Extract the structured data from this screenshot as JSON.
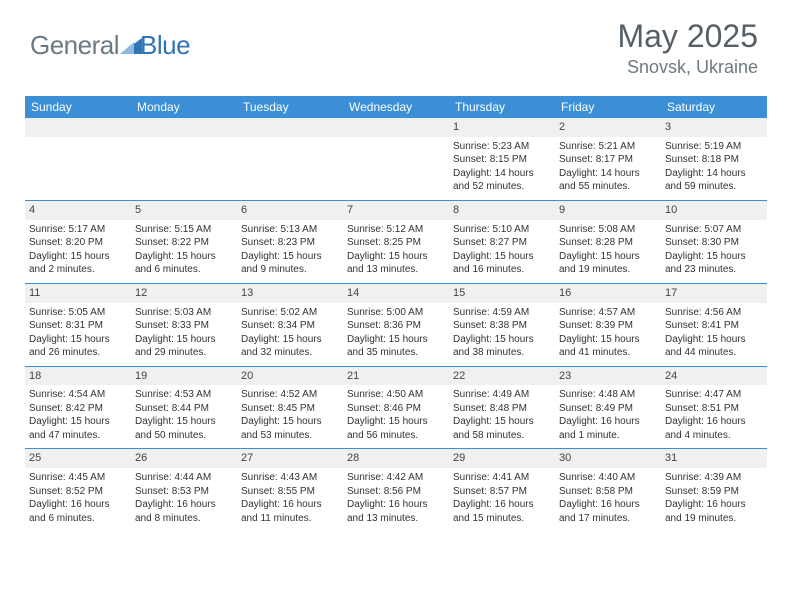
{
  "brand": {
    "word1": "General",
    "word2": "Blue"
  },
  "title": "May 2025",
  "location": "Snovsk, Ukraine",
  "colors": {
    "header_bg": "#3a8fd6",
    "daynum_bg": "#eef0f1",
    "text": "#333333",
    "brand_gray": "#6b7a84",
    "brand_blue": "#2f74b5"
  },
  "headers": [
    "Sunday",
    "Monday",
    "Tuesday",
    "Wednesday",
    "Thursday",
    "Friday",
    "Saturday"
  ],
  "weeks": [
    [
      null,
      null,
      null,
      null,
      {
        "n": "1",
        "sr": "Sunrise: 5:23 AM",
        "ss": "Sunset: 8:15 PM",
        "d1": "Daylight: 14 hours",
        "d2": "and 52 minutes."
      },
      {
        "n": "2",
        "sr": "Sunrise: 5:21 AM",
        "ss": "Sunset: 8:17 PM",
        "d1": "Daylight: 14 hours",
        "d2": "and 55 minutes."
      },
      {
        "n": "3",
        "sr": "Sunrise: 5:19 AM",
        "ss": "Sunset: 8:18 PM",
        "d1": "Daylight: 14 hours",
        "d2": "and 59 minutes."
      }
    ],
    [
      {
        "n": "4",
        "sr": "Sunrise: 5:17 AM",
        "ss": "Sunset: 8:20 PM",
        "d1": "Daylight: 15 hours",
        "d2": "and 2 minutes."
      },
      {
        "n": "5",
        "sr": "Sunrise: 5:15 AM",
        "ss": "Sunset: 8:22 PM",
        "d1": "Daylight: 15 hours",
        "d2": "and 6 minutes."
      },
      {
        "n": "6",
        "sr": "Sunrise: 5:13 AM",
        "ss": "Sunset: 8:23 PM",
        "d1": "Daylight: 15 hours",
        "d2": "and 9 minutes."
      },
      {
        "n": "7",
        "sr": "Sunrise: 5:12 AM",
        "ss": "Sunset: 8:25 PM",
        "d1": "Daylight: 15 hours",
        "d2": "and 13 minutes."
      },
      {
        "n": "8",
        "sr": "Sunrise: 5:10 AM",
        "ss": "Sunset: 8:27 PM",
        "d1": "Daylight: 15 hours",
        "d2": "and 16 minutes."
      },
      {
        "n": "9",
        "sr": "Sunrise: 5:08 AM",
        "ss": "Sunset: 8:28 PM",
        "d1": "Daylight: 15 hours",
        "d2": "and 19 minutes."
      },
      {
        "n": "10",
        "sr": "Sunrise: 5:07 AM",
        "ss": "Sunset: 8:30 PM",
        "d1": "Daylight: 15 hours",
        "d2": "and 23 minutes."
      }
    ],
    [
      {
        "n": "11",
        "sr": "Sunrise: 5:05 AM",
        "ss": "Sunset: 8:31 PM",
        "d1": "Daylight: 15 hours",
        "d2": "and 26 minutes."
      },
      {
        "n": "12",
        "sr": "Sunrise: 5:03 AM",
        "ss": "Sunset: 8:33 PM",
        "d1": "Daylight: 15 hours",
        "d2": "and 29 minutes."
      },
      {
        "n": "13",
        "sr": "Sunrise: 5:02 AM",
        "ss": "Sunset: 8:34 PM",
        "d1": "Daylight: 15 hours",
        "d2": "and 32 minutes."
      },
      {
        "n": "14",
        "sr": "Sunrise: 5:00 AM",
        "ss": "Sunset: 8:36 PM",
        "d1": "Daylight: 15 hours",
        "d2": "and 35 minutes."
      },
      {
        "n": "15",
        "sr": "Sunrise: 4:59 AM",
        "ss": "Sunset: 8:38 PM",
        "d1": "Daylight: 15 hours",
        "d2": "and 38 minutes."
      },
      {
        "n": "16",
        "sr": "Sunrise: 4:57 AM",
        "ss": "Sunset: 8:39 PM",
        "d1": "Daylight: 15 hours",
        "d2": "and 41 minutes."
      },
      {
        "n": "17",
        "sr": "Sunrise: 4:56 AM",
        "ss": "Sunset: 8:41 PM",
        "d1": "Daylight: 15 hours",
        "d2": "and 44 minutes."
      }
    ],
    [
      {
        "n": "18",
        "sr": "Sunrise: 4:54 AM",
        "ss": "Sunset: 8:42 PM",
        "d1": "Daylight: 15 hours",
        "d2": "and 47 minutes."
      },
      {
        "n": "19",
        "sr": "Sunrise: 4:53 AM",
        "ss": "Sunset: 8:44 PM",
        "d1": "Daylight: 15 hours",
        "d2": "and 50 minutes."
      },
      {
        "n": "20",
        "sr": "Sunrise: 4:52 AM",
        "ss": "Sunset: 8:45 PM",
        "d1": "Daylight: 15 hours",
        "d2": "and 53 minutes."
      },
      {
        "n": "21",
        "sr": "Sunrise: 4:50 AM",
        "ss": "Sunset: 8:46 PM",
        "d1": "Daylight: 15 hours",
        "d2": "and 56 minutes."
      },
      {
        "n": "22",
        "sr": "Sunrise: 4:49 AM",
        "ss": "Sunset: 8:48 PM",
        "d1": "Daylight: 15 hours",
        "d2": "and 58 minutes."
      },
      {
        "n": "23",
        "sr": "Sunrise: 4:48 AM",
        "ss": "Sunset: 8:49 PM",
        "d1": "Daylight: 16 hours",
        "d2": "and 1 minute."
      },
      {
        "n": "24",
        "sr": "Sunrise: 4:47 AM",
        "ss": "Sunset: 8:51 PM",
        "d1": "Daylight: 16 hours",
        "d2": "and 4 minutes."
      }
    ],
    [
      {
        "n": "25",
        "sr": "Sunrise: 4:45 AM",
        "ss": "Sunset: 8:52 PM",
        "d1": "Daylight: 16 hours",
        "d2": "and 6 minutes."
      },
      {
        "n": "26",
        "sr": "Sunrise: 4:44 AM",
        "ss": "Sunset: 8:53 PM",
        "d1": "Daylight: 16 hours",
        "d2": "and 8 minutes."
      },
      {
        "n": "27",
        "sr": "Sunrise: 4:43 AM",
        "ss": "Sunset: 8:55 PM",
        "d1": "Daylight: 16 hours",
        "d2": "and 11 minutes."
      },
      {
        "n": "28",
        "sr": "Sunrise: 4:42 AM",
        "ss": "Sunset: 8:56 PM",
        "d1": "Daylight: 16 hours",
        "d2": "and 13 minutes."
      },
      {
        "n": "29",
        "sr": "Sunrise: 4:41 AM",
        "ss": "Sunset: 8:57 PM",
        "d1": "Daylight: 16 hours",
        "d2": "and 15 minutes."
      },
      {
        "n": "30",
        "sr": "Sunrise: 4:40 AM",
        "ss": "Sunset: 8:58 PM",
        "d1": "Daylight: 16 hours",
        "d2": "and 17 minutes."
      },
      {
        "n": "31",
        "sr": "Sunrise: 4:39 AM",
        "ss": "Sunset: 8:59 PM",
        "d1": "Daylight: 16 hours",
        "d2": "and 19 minutes."
      }
    ]
  ]
}
